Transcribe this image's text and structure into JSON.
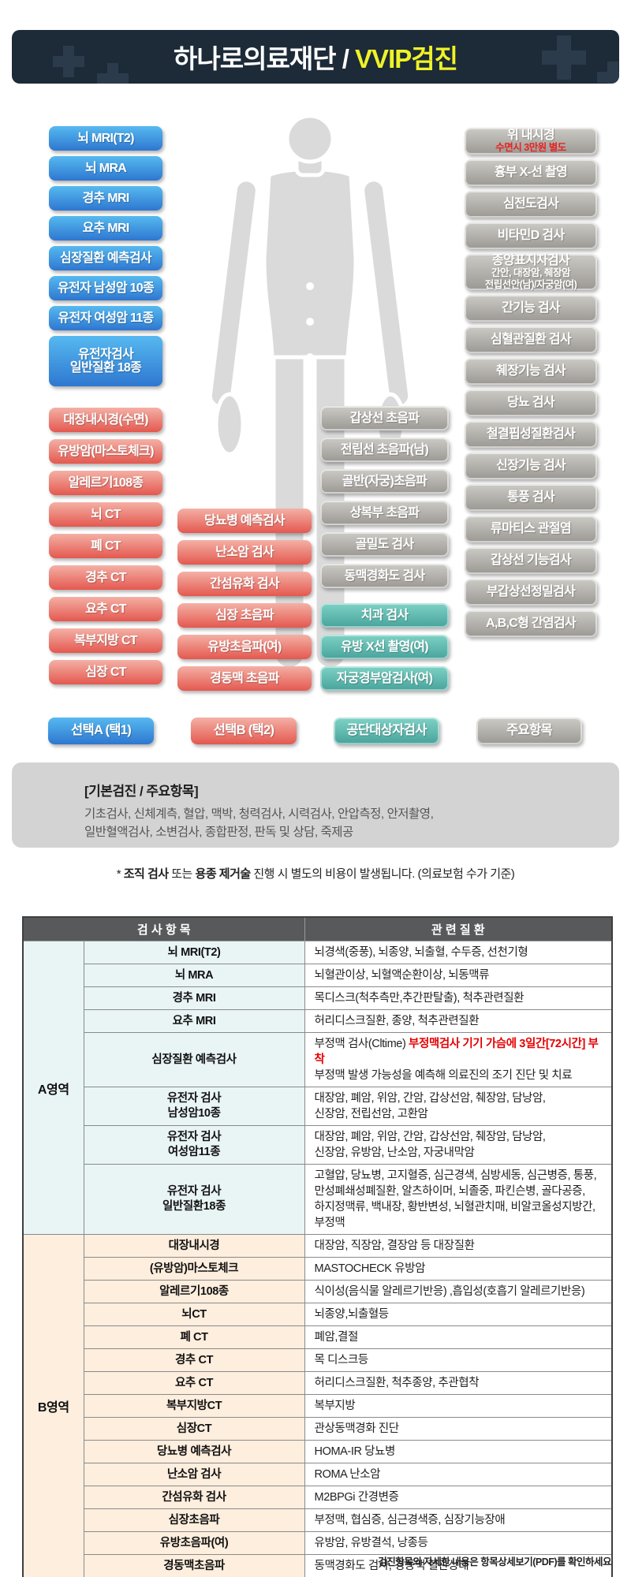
{
  "header": {
    "title_main": "하나로의료재단 / ",
    "title_accent": "VVIP검진"
  },
  "columns": {
    "select_a": {
      "items": [
        "뇌 MRI(T2)",
        "뇌 MRA",
        "경추 MRI",
        "요추 MRI",
        "심장질환 예측검사",
        "유전자 남성암 10종",
        "유전자 여성암 11종",
        {
          "label": "유전자검사\n일반질환 18종",
          "variant": "lines2"
        }
      ]
    },
    "select_b_left": {
      "items": [
        "대장내시경(수면)",
        "유방암(마스토체크)",
        "알레르기108종",
        "뇌 CT",
        "폐 CT",
        "경추 CT",
        "요추 CT",
        "복부지방 CT",
        "심장 CT"
      ]
    },
    "select_b_mid": {
      "items": [
        "당뇨병 예측검사",
        "난소암 검사",
        "간섬유화 검사",
        "심장 초음파",
        "유방초음파(여)",
        "경동맥 초음파"
      ]
    },
    "mid_gray": {
      "items": [
        "갑상선 초음파",
        "전립선 초음파(남)",
        "골반(자궁)초음파",
        "상복부 초음파",
        "골밀도 검사",
        "동맥경화도 검사",
        {
          "label": "치과 검사",
          "variant": "teal gap-top"
        },
        {
          "label": "유방 X선 촬영(여)",
          "variant": "teal"
        },
        {
          "label": "자궁경부암검사(여)",
          "variant": "teal"
        }
      ]
    },
    "right_gray": {
      "items": [
        {
          "label": "위 내시경",
          "sub": "수면시 3만원 별도",
          "variant": "tall2 sub-red"
        },
        "흉부 X-선 촬영",
        "심전도검사",
        "비타민D 검사",
        {
          "label": "종양표지자검사",
          "sub": "간안, 대장암, 췌장암\n전립선안(남)/자궁암(여)",
          "variant": "tall3"
        },
        "간기능 검사",
        "심혈관질환 검사",
        "췌장기능 검사",
        "당뇨 검사",
        "철결핍성질환검사",
        "신장기능 검사",
        "통풍 검사",
        "류마티스 관절염",
        "갑상선 기능검사",
        "부갑상선정밀검사",
        "A,B,C형 간염검사"
      ]
    }
  },
  "legend": {
    "items": [
      {
        "label": "선택A (택1)",
        "variant": "blue"
      },
      {
        "label": "선택B (택2)",
        "variant": "red"
      },
      {
        "label": "공단대상자검사",
        "variant": "teal"
      },
      {
        "label": "주요항목",
        "variant": "gray"
      }
    ]
  },
  "basic_box": {
    "title": "[기본검진 / 주요항목]",
    "line1": "기초검사, 신체계측, 혈압, 맥박, 청력검사, 시력검사, 안압측정, 안저촬영,",
    "line2": "일반혈액검사, 소변검사, 종합판정, 판독 및 상담, 죽제공"
  },
  "note": {
    "prefix": "* ",
    "bold1": "조직 검사",
    "mid1": " 또는 ",
    "bold2": "용종 제거술",
    "suffix": " 진행 시 별도의 비용이 발생됩니다. (의료보험 수가 기준)"
  },
  "table": {
    "header_col1": "검 사 항 목",
    "header_col2": "관 련 질 환",
    "sections": [
      {
        "group": "A영역",
        "css": "sec-a",
        "rows": [
          {
            "name": "뇌 MRI(T2)",
            "desc": "뇌경색(중풍), 뇌종양, 뇌출혈, 수두증, 선천기형"
          },
          {
            "name": "뇌 MRA",
            "desc": "뇌혈관이상, 뇌혈액순환이상, 뇌동맥류"
          },
          {
            "name": "경추 MRI",
            "desc": "목디스크(척추측만,추간판탈출), 척추관련질환"
          },
          {
            "name": "요추 MRI",
            "desc": "허리디스크질환, 종양, 척추관련질환"
          },
          {
            "name": "심장질환 예측검사",
            "segments": [
              {
                "t": "부정맥 검사(Cltime) "
              },
              {
                "t": "부정맥검사 기기 가슴에 3일간[72시간] 부착",
                "red": true
              },
              {
                "t": "\n부정맥 발생 가능성을 예측해 의료진의 조기 진단 및 치료"
              }
            ]
          },
          {
            "name": "유전자 검사\n남성암10종",
            "desc": "대장암, 폐암, 위암, 간암, 갑상선암, 췌장암, 담낭암,\n신장암, 전립선암, 고환암"
          },
          {
            "name": "유전자 검사\n여성암11종",
            "desc": "대장암, 폐암, 위암, 간암, 갑상선암, 췌장암, 담낭암,\n신장암, 유방암, 난소암, 자궁내막암"
          },
          {
            "name": "유전자 검사\n일반질환18종",
            "size": "h3",
            "desc": "고혈압, 당뇨병, 고지혈증, 심근경색, 심방세동, 심근병증, 통풍,\n만성폐쇄성폐질환, 알츠하이머, 뇌졸중, 파킨슨병, 골다공증,\n하지정맥류, 백내장, 황반변성, 뇌혈관치매, 비알코올성지방간, 부정맥"
          }
        ]
      },
      {
        "group": "B영역",
        "css": "sec-b",
        "rows": [
          {
            "name": "대장내시경",
            "desc": "대장암, 직장암, 결장암 등 대장질환"
          },
          {
            "name": "(유방암)마스토체크",
            "desc": "MASTOCHECK 유방암"
          },
          {
            "name": "알레르기108종",
            "desc": "식이성(음식물 알레르기반응) ,흡입성(호흡기 알레르기반응)"
          },
          {
            "name": "뇌CT",
            "desc": "뇌종양,뇌출혈등"
          },
          {
            "name": "폐 CT",
            "desc": "폐암,결절"
          },
          {
            "name": "경추 CT",
            "desc": "목 디스크등"
          },
          {
            "name": "요추 CT",
            "desc": "허리디스크질환, 척추종양, 추관협착"
          },
          {
            "name": "복부지방CT",
            "desc": "복부지방"
          },
          {
            "name": "심장CT",
            "desc": "관상동맥경화 진단"
          },
          {
            "name": "당뇨병 예측검사",
            "desc": "HOMA-IR 당뇨병"
          },
          {
            "name": "난소암 검사",
            "desc": "ROMA 난소암"
          },
          {
            "name": "간섬유화 검사",
            "desc": "M2BPGi 간경변증"
          },
          {
            "name": "심장초음파",
            "desc": "부정맥, 협심증, 심근경색증, 심장기능장애"
          },
          {
            "name": "유방초음파(여)",
            "desc": "유방암, 유방결석, 낭종등"
          },
          {
            "name": "경동맥초음파",
            "desc": "동맥경화도 검사, 경동맥 혈관상태"
          }
        ]
      }
    ]
  },
  "footer": {
    "text": "검진항목의 자세한 내용은 항목상세보기(PDF)를 확인하세요"
  }
}
